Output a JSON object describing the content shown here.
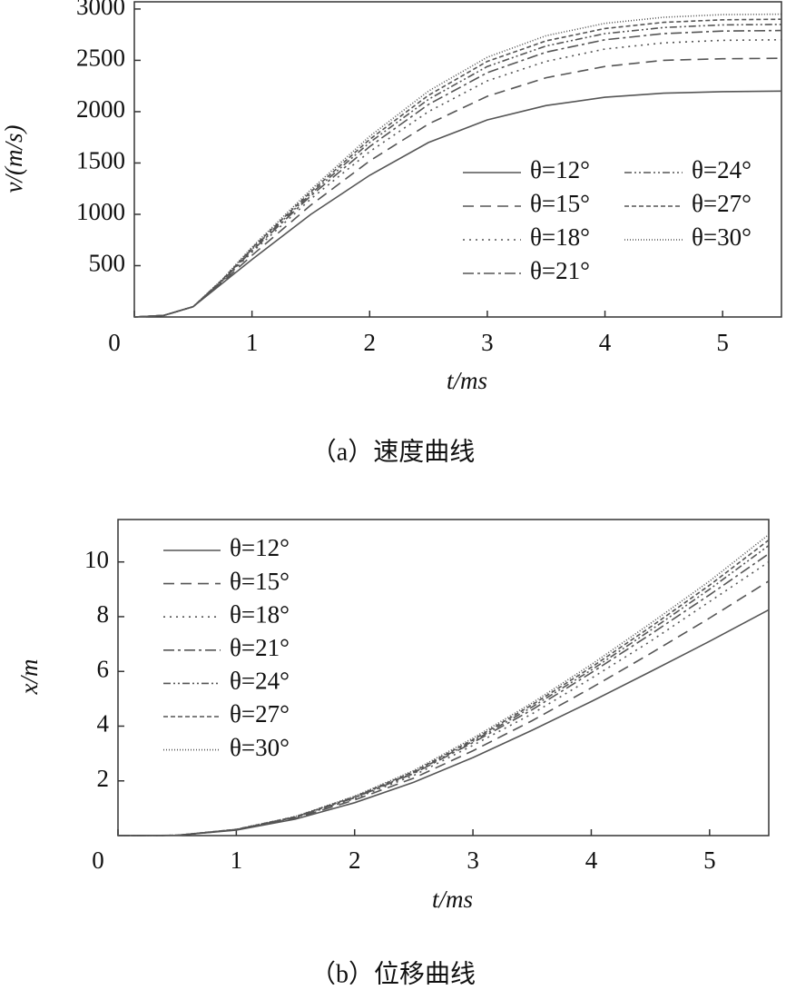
{
  "chart_data": [
    {
      "type": "line",
      "caption": "（a）速度曲线",
      "xlabel": "t/ms",
      "ylabel": "v/(m/s)",
      "x": [
        0,
        0.25,
        0.5,
        0.75,
        1,
        1.5,
        2,
        2.5,
        3,
        3.5,
        4,
        4.5,
        5,
        5.5
      ],
      "xlim": [
        0,
        5.5
      ],
      "ylim": [
        0,
        3070
      ],
      "xticks": [
        0,
        1,
        2,
        3,
        4,
        5
      ],
      "yticks": [
        500,
        1000,
        1500,
        2000,
        2500,
        3000
      ],
      "series": [
        {
          "name": "θ=12°",
          "color": "#555555",
          "dash": "none",
          "values": [
            0,
            15,
            100,
            330,
            560,
            1000,
            1380,
            1700,
            1920,
            2060,
            2140,
            2180,
            2195,
            2200
          ]
        },
        {
          "name": "θ=15°",
          "color": "#555555",
          "dash": "12,7",
          "values": [
            0,
            15,
            100,
            340,
            600,
            1090,
            1520,
            1880,
            2150,
            2330,
            2440,
            2500,
            2515,
            2520
          ]
        },
        {
          "name": "θ=18°",
          "color": "#555555",
          "dash": "2,5",
          "values": [
            0,
            15,
            100,
            350,
            630,
            1150,
            1610,
            2000,
            2300,
            2490,
            2610,
            2670,
            2695,
            2700
          ]
        },
        {
          "name": "θ=21°",
          "color": "#555555",
          "dash": "12,4,3,4",
          "values": [
            0,
            15,
            100,
            355,
            645,
            1180,
            1660,
            2070,
            2380,
            2580,
            2700,
            2760,
            2785,
            2790
          ]
        },
        {
          "name": "θ=24°",
          "color": "#555555",
          "dash": "8,3,2,3,2,3",
          "values": [
            0,
            15,
            100,
            360,
            660,
            1200,
            1700,
            2120,
            2440,
            2640,
            2760,
            2820,
            2845,
            2850
          ]
        },
        {
          "name": "θ=27°",
          "color": "#555555",
          "dash": "5,3",
          "values": [
            0,
            15,
            100,
            365,
            670,
            1220,
            1730,
            2160,
            2490,
            2690,
            2810,
            2870,
            2895,
            2900
          ]
        },
        {
          "name": "θ=30°",
          "color": "#555555",
          "dash": "1,2",
          "values": [
            0,
            15,
            100,
            370,
            680,
            1240,
            1760,
            2200,
            2530,
            2740,
            2860,
            2920,
            2945,
            2950
          ]
        }
      ]
    },
    {
      "type": "line",
      "caption": "（b）位移曲线",
      "xlabel": "t/ms",
      "ylabel": "x/m",
      "x": [
        0,
        0.5,
        1,
        1.5,
        2,
        2.5,
        3,
        3.5,
        4,
        4.5,
        5,
        5.5
      ],
      "xlim": [
        0,
        5.5
      ],
      "ylim": [
        0,
        11.55
      ],
      "xticks": [
        0,
        1,
        2,
        3,
        4,
        5
      ],
      "yticks": [
        2,
        4,
        6,
        8,
        10
      ],
      "series": [
        {
          "name": "θ=12°",
          "color": "#555555",
          "dash": "none",
          "values": [
            0,
            0.01,
            0.2,
            0.6,
            1.2,
            1.95,
            2.85,
            3.85,
            4.9,
            5.99,
            7.1,
            8.25
          ]
        },
        {
          "name": "θ=15°",
          "color": "#555555",
          "dash": "12,7",
          "values": [
            0,
            0.01,
            0.21,
            0.63,
            1.3,
            2.1,
            3.1,
            4.2,
            5.4,
            6.65,
            7.95,
            9.3
          ]
        },
        {
          "name": "θ=18°",
          "color": "#555555",
          "dash": "2,5",
          "values": [
            0,
            0.01,
            0.22,
            0.66,
            1.35,
            2.2,
            3.3,
            4.45,
            5.75,
            7.1,
            8.55,
            10.0
          ]
        },
        {
          "name": "θ=21°",
          "color": "#555555",
          "dash": "12,4,3,4",
          "values": [
            0,
            0.01,
            0.22,
            0.67,
            1.38,
            2.27,
            3.4,
            4.6,
            5.95,
            7.35,
            8.8,
            10.3
          ]
        },
        {
          "name": "θ=24°",
          "color": "#555555",
          "dash": "8,3,2,3,2,3",
          "values": [
            0,
            0.01,
            0.22,
            0.68,
            1.4,
            2.3,
            3.45,
            4.7,
            6.05,
            7.5,
            9.0,
            10.6
          ]
        },
        {
          "name": "θ=27°",
          "color": "#555555",
          "dash": "5,3",
          "values": [
            0,
            0.01,
            0.23,
            0.69,
            1.42,
            2.34,
            3.5,
            4.78,
            6.15,
            7.62,
            9.15,
            10.8
          ]
        },
        {
          "name": "θ=30°",
          "color": "#555555",
          "dash": "1,2",
          "values": [
            0,
            0.01,
            0.23,
            0.7,
            1.44,
            2.38,
            3.56,
            4.85,
            6.25,
            7.75,
            9.3,
            11.0
          ]
        }
      ]
    }
  ]
}
